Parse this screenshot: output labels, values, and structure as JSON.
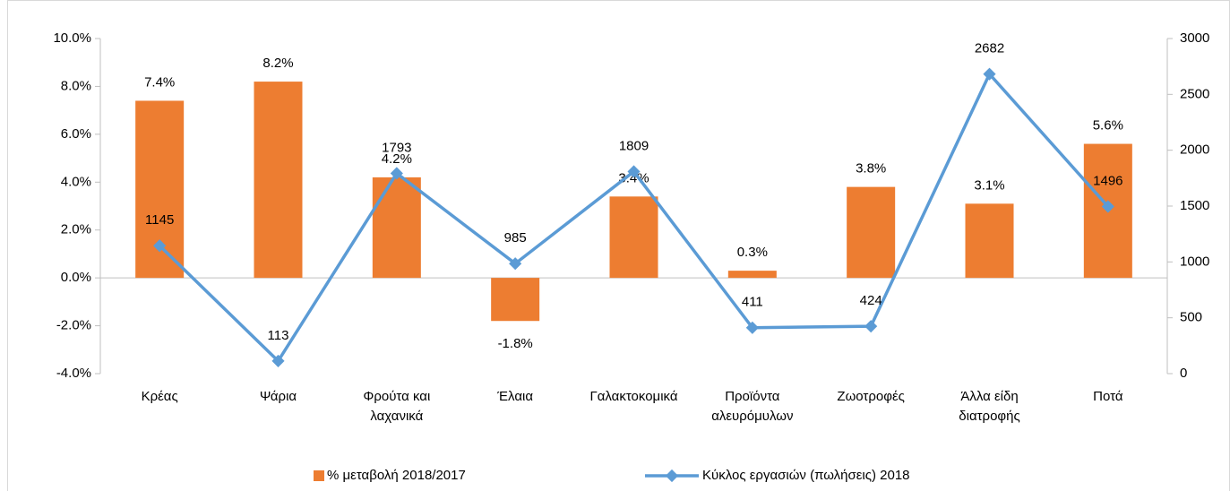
{
  "chart_data": {
    "type": "bar_line",
    "categories": [
      "Κρέας",
      "Ψάρια",
      "Φρούτα και λαχανικά",
      "Έλαια",
      "Γαλακτοκομικά",
      "Προϊόντα αλευρόμυλων",
      "Ζωοτροφές",
      "Άλλα είδη διατροφής",
      "Ποτά"
    ],
    "series": [
      {
        "name": "% μεταβολή 2018/2017",
        "type": "bar",
        "color": "#ED7D31",
        "axis": "y",
        "values": [
          7.4,
          8.2,
          4.2,
          -1.8,
          3.4,
          0.3,
          3.8,
          3.1,
          5.6
        ],
        "value_labels": [
          "7.4%",
          "8.2%",
          "4.2%",
          "-1.8%",
          "3.4%",
          "0.3%",
          "3.8%",
          "3.1%",
          "5.6%"
        ]
      },
      {
        "name": "Κύκλος εργασιών (πωλήσεις) 2018",
        "type": "line",
        "color": "#5B9BD5",
        "axis": "y2",
        "values": [
          1145,
          113,
          1793,
          985,
          1809,
          411,
          424,
          2682,
          1496
        ]
      }
    ],
    "ylim": [
      -4,
      10
    ],
    "yticks": [
      {
        "value": -4,
        "label": "-4.0%"
      },
      {
        "value": -2,
        "label": "-2.0%"
      },
      {
        "value": 0,
        "label": "0.0%"
      },
      {
        "value": 2,
        "label": "2.0%"
      },
      {
        "value": 4,
        "label": "4.0%"
      },
      {
        "value": 6,
        "label": "6.0%"
      },
      {
        "value": 8,
        "label": "8.0%"
      },
      {
        "value": 10,
        "label": "10.0%"
      }
    ],
    "y2lim": [
      0,
      3000
    ],
    "y2ticks": [
      0,
      500,
      1000,
      1500,
      2000,
      2500,
      3000
    ],
    "legend": "bottom",
    "grid": false
  }
}
